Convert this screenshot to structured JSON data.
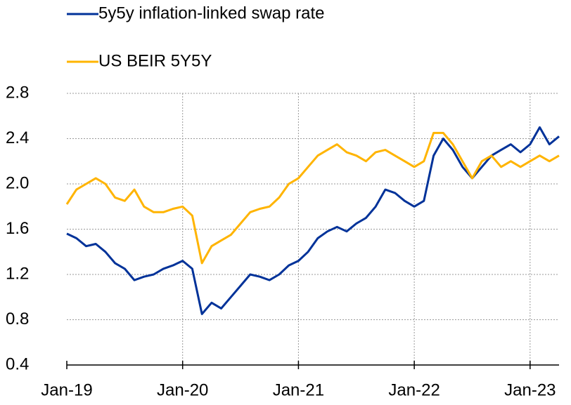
{
  "chart_data": {
    "type": "line",
    "x": [
      "2019-01",
      "2019-02",
      "2019-03",
      "2019-04",
      "2019-05",
      "2019-06",
      "2019-07",
      "2019-08",
      "2019-09",
      "2019-10",
      "2019-11",
      "2019-12",
      "2020-01",
      "2020-02",
      "2020-03",
      "2020-04",
      "2020-05",
      "2020-06",
      "2020-07",
      "2020-08",
      "2020-09",
      "2020-10",
      "2020-11",
      "2020-12",
      "2021-01",
      "2021-02",
      "2021-03",
      "2021-04",
      "2021-05",
      "2021-06",
      "2021-07",
      "2021-08",
      "2021-09",
      "2021-10",
      "2021-11",
      "2021-12",
      "2022-01",
      "2022-02",
      "2022-03",
      "2022-04",
      "2022-05",
      "2022-06",
      "2022-07",
      "2022-08",
      "2022-09",
      "2022-10",
      "2022-11",
      "2022-12",
      "2023-01",
      "2023-02",
      "2023-03",
      "2023-04"
    ],
    "series": [
      {
        "name": "5y5y inflation-linked swap rate",
        "color": "#003299",
        "values": [
          1.56,
          1.52,
          1.45,
          1.47,
          1.4,
          1.3,
          1.25,
          1.15,
          1.18,
          1.2,
          1.25,
          1.28,
          1.32,
          1.25,
          0.85,
          0.95,
          0.9,
          1.0,
          1.1,
          1.2,
          1.18,
          1.15,
          1.2,
          1.28,
          1.32,
          1.4,
          1.52,
          1.58,
          1.62,
          1.58,
          1.65,
          1.7,
          1.8,
          1.95,
          1.92,
          1.85,
          1.8,
          1.85,
          2.25,
          2.4,
          2.3,
          2.15,
          2.05,
          2.15,
          2.25,
          2.3,
          2.35,
          2.28,
          2.35,
          2.5,
          2.35,
          2.42
        ]
      },
      {
        "name": "US BEIR 5Y5Y",
        "color": "#ffb400",
        "values": [
          1.82,
          1.95,
          2.0,
          2.05,
          2.0,
          1.88,
          1.85,
          1.95,
          1.8,
          1.75,
          1.75,
          1.78,
          1.8,
          1.72,
          1.3,
          1.45,
          1.5,
          1.55,
          1.65,
          1.75,
          1.78,
          1.8,
          1.88,
          2.0,
          2.05,
          2.15,
          2.25,
          2.3,
          2.35,
          2.28,
          2.25,
          2.2,
          2.28,
          2.3,
          2.25,
          2.2,
          2.15,
          2.2,
          2.45,
          2.45,
          2.35,
          2.2,
          2.05,
          2.2,
          2.25,
          2.15,
          2.2,
          2.15,
          2.2,
          2.25,
          2.2,
          2.25
        ]
      }
    ],
    "xlim": [
      "2019-01",
      "2023-04"
    ],
    "xticks": [
      {
        "value": "2019-01",
        "label": "Jan-19"
      },
      {
        "value": "2020-01",
        "label": "Jan-20"
      },
      {
        "value": "2021-01",
        "label": "Jan-21"
      },
      {
        "value": "2022-01",
        "label": "Jan-22"
      },
      {
        "value": "2023-01",
        "label": "Jan-23"
      }
    ],
    "ylim": [
      0.4,
      2.8
    ],
    "yticks": [
      {
        "value": 0.4,
        "label": "0.4"
      },
      {
        "value": 0.8,
        "label": "0.8"
      },
      {
        "value": 1.2,
        "label": "1.2"
      },
      {
        "value": 1.6,
        "label": "1.6"
      },
      {
        "value": 2.0,
        "label": "2.0"
      },
      {
        "value": 2.4,
        "label": "2.4"
      },
      {
        "value": 2.8,
        "label": "2.8"
      }
    ],
    "grid": true
  }
}
